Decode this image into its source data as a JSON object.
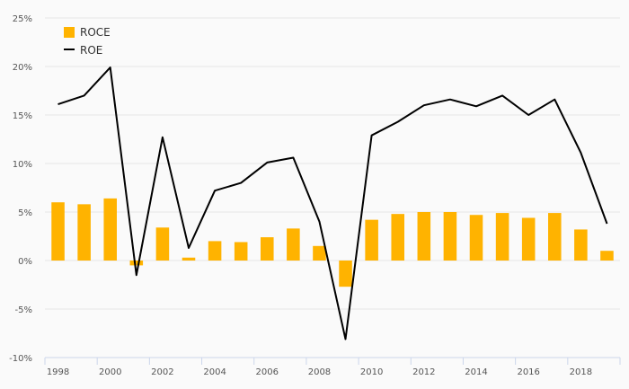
{
  "chart_data": {
    "type": "bar",
    "title": "",
    "xlabel": "",
    "ylabel": "",
    "x": [
      1998,
      1999,
      2000,
      2001,
      2002,
      2003,
      2004,
      2005,
      2006,
      2007,
      2008,
      2009,
      2010,
      2011,
      2012,
      2013,
      2014,
      2015,
      2016,
      2017,
      2018,
      2019
    ],
    "x_tick_labels": [
      "1998",
      "2000",
      "2002",
      "2004",
      "2006",
      "2008",
      "2010",
      "2012",
      "2014",
      "2016",
      "2018"
    ],
    "ylim": [
      -10,
      25
    ],
    "y_ticks": [
      -10,
      -5,
      0,
      5,
      10,
      15,
      20,
      25
    ],
    "y_tick_labels": [
      "-10%",
      "-5%",
      "0%",
      "5%",
      "10%",
      "15%",
      "20%",
      "25%"
    ],
    "grid": true,
    "legend_position": "top-left",
    "series": [
      {
        "name": "ROCE",
        "type": "bar",
        "color": "#FFB300",
        "values": [
          6.0,
          5.8,
          6.4,
          -0.5,
          3.4,
          0.3,
          2.0,
          1.9,
          2.4,
          3.3,
          1.5,
          -2.7,
          4.2,
          4.8,
          5.0,
          5.0,
          4.7,
          4.9,
          4.4,
          4.9,
          3.2,
          1.0
        ]
      },
      {
        "name": "ROE",
        "type": "line",
        "color": "#000000",
        "values": [
          16.1,
          17.0,
          19.9,
          -1.5,
          12.7,
          1.3,
          7.2,
          8.0,
          10.1,
          10.6,
          4.0,
          -8.1,
          12.9,
          14.3,
          16.0,
          16.6,
          15.9,
          17.0,
          15.0,
          16.6,
          11.1,
          3.8
        ]
      }
    ]
  }
}
